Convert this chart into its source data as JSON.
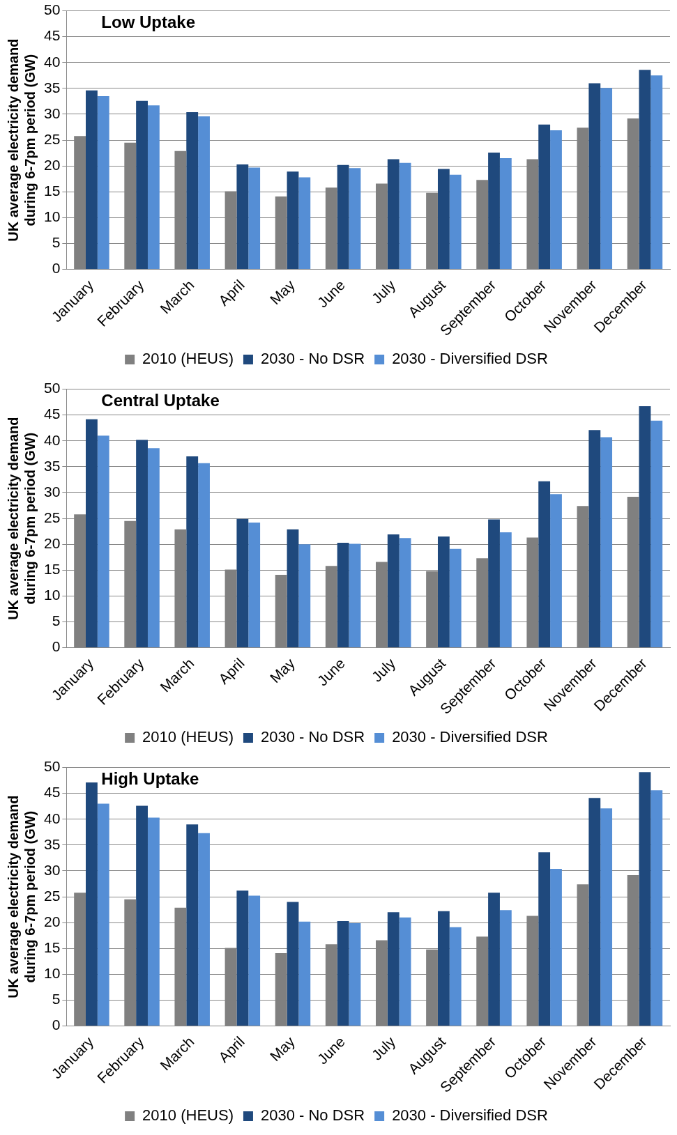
{
  "chart_data": [
    {
      "type": "bar",
      "title": "Low Uptake",
      "ylabel": "UK average electricity demand during 6-7pm period (GW)",
      "categories": [
        "January",
        "February",
        "March",
        "April",
        "May",
        "June",
        "July",
        "August",
        "September",
        "October",
        "November",
        "December"
      ],
      "series": [
        {
          "name": "2010 (HEUS)",
          "color": "#808080",
          "values": [
            25.8,
            24.5,
            22.9,
            15.1,
            14.1,
            15.8,
            16.6,
            14.8,
            17.3,
            21.3,
            27.4,
            29.2
          ]
        },
        {
          "name": "2030 - No DSR",
          "color": "#1f497d",
          "values": [
            34.6,
            32.6,
            30.4,
            20.3,
            18.9,
            20.2,
            21.3,
            19.4,
            22.6,
            28.0,
            36.0,
            38.6
          ]
        },
        {
          "name": "2030 - Diversified DSR",
          "color": "#558ed5",
          "values": [
            33.5,
            31.7,
            29.6,
            19.7,
            17.8,
            19.6,
            20.6,
            18.3,
            21.5,
            26.9,
            35.1,
            37.5
          ]
        }
      ],
      "ylim": [
        0,
        50
      ],
      "yticks": [
        0,
        5,
        10,
        15,
        20,
        25,
        30,
        35,
        40,
        45,
        50
      ],
      "grid": "y",
      "legend": "bottom"
    },
    {
      "type": "bar",
      "title": "Central Uptake",
      "ylabel": "UK average electricity demand during 6-7pm period (GW)",
      "categories": [
        "January",
        "February",
        "March",
        "April",
        "May",
        "June",
        "July",
        "August",
        "September",
        "October",
        "November",
        "December"
      ],
      "series": [
        {
          "name": "2010 (HEUS)",
          "color": "#808080",
          "values": [
            25.8,
            24.5,
            22.9,
            15.1,
            14.1,
            15.8,
            16.6,
            14.8,
            17.3,
            21.3,
            27.4,
            29.2
          ]
        },
        {
          "name": "2030 - No DSR",
          "color": "#1f497d",
          "values": [
            44.2,
            40.2,
            37.0,
            24.9,
            22.9,
            20.3,
            21.9,
            21.5,
            24.8,
            32.2,
            42.1,
            46.7
          ]
        },
        {
          "name": "2030 - Diversified DSR",
          "color": "#558ed5",
          "values": [
            41.0,
            38.6,
            35.7,
            24.2,
            20.0,
            20.1,
            21.2,
            19.1,
            22.3,
            29.7,
            40.7,
            43.9
          ]
        }
      ],
      "ylim": [
        0,
        50
      ],
      "yticks": [
        0,
        5,
        10,
        15,
        20,
        25,
        30,
        35,
        40,
        45,
        50
      ],
      "grid": "y",
      "legend": "bottom"
    },
    {
      "type": "bar",
      "title": "High Uptake",
      "ylabel": "UK average electricity demand during 6-7pm period (GW)",
      "categories": [
        "January",
        "February",
        "March",
        "April",
        "May",
        "June",
        "July",
        "August",
        "September",
        "October",
        "November",
        "December"
      ],
      "series": [
        {
          "name": "2010 (HEUS)",
          "color": "#808080",
          "values": [
            25.8,
            24.5,
            22.9,
            15.1,
            14.1,
            15.8,
            16.6,
            14.8,
            17.3,
            21.3,
            27.4,
            29.2
          ]
        },
        {
          "name": "2030 - No DSR",
          "color": "#1f497d",
          "values": [
            47.1,
            42.6,
            39.0,
            26.2,
            24.0,
            20.3,
            22.0,
            22.2,
            25.8,
            33.6,
            44.1,
            49.1
          ]
        },
        {
          "name": "2030 - Diversified DSR",
          "color": "#558ed5",
          "values": [
            43.0,
            40.3,
            37.3,
            25.2,
            20.2,
            19.9,
            21.0,
            19.1,
            22.4,
            30.4,
            42.1,
            45.6
          ]
        }
      ],
      "ylim": [
        0,
        50
      ],
      "yticks": [
        0,
        5,
        10,
        15,
        20,
        25,
        30,
        35,
        40,
        45,
        50
      ],
      "grid": "y",
      "legend": "bottom"
    }
  ]
}
